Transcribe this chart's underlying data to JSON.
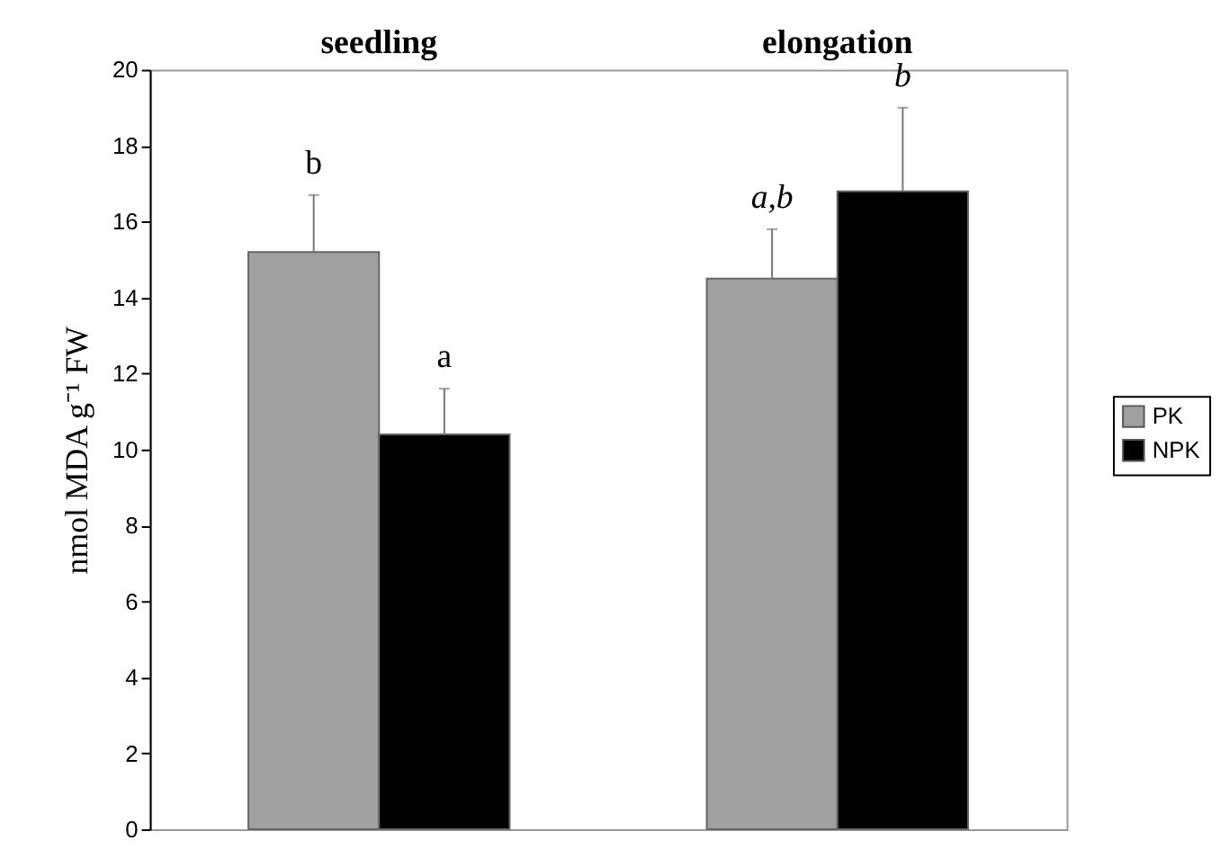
{
  "chart_data": {
    "type": "bar",
    "ylabel": "nmol MDA g⁻¹ FW",
    "categories": [
      "seedling",
      "elongation"
    ],
    "series": [
      {
        "name": "PK",
        "color": "#a0a0a0",
        "values": [
          15.2,
          14.5
        ],
        "errors": [
          [
            15.2,
            16.7
          ],
          [
            14.5,
            15.8
          ]
        ]
      },
      {
        "name": "NPK",
        "color": "#000000",
        "values": [
          10.4,
          16.8
        ],
        "errors": [
          [
            10.4,
            11.6
          ],
          [
            16.8,
            19.0
          ]
        ]
      }
    ],
    "ylim": [
      0,
      20
    ],
    "yticks": [
      0,
      2,
      4,
      6,
      8,
      10,
      12,
      14,
      16,
      18,
      20
    ],
    "grid": false,
    "legend": "right",
    "annotations": [
      "b",
      "a",
      "a,b",
      "b"
    ]
  }
}
